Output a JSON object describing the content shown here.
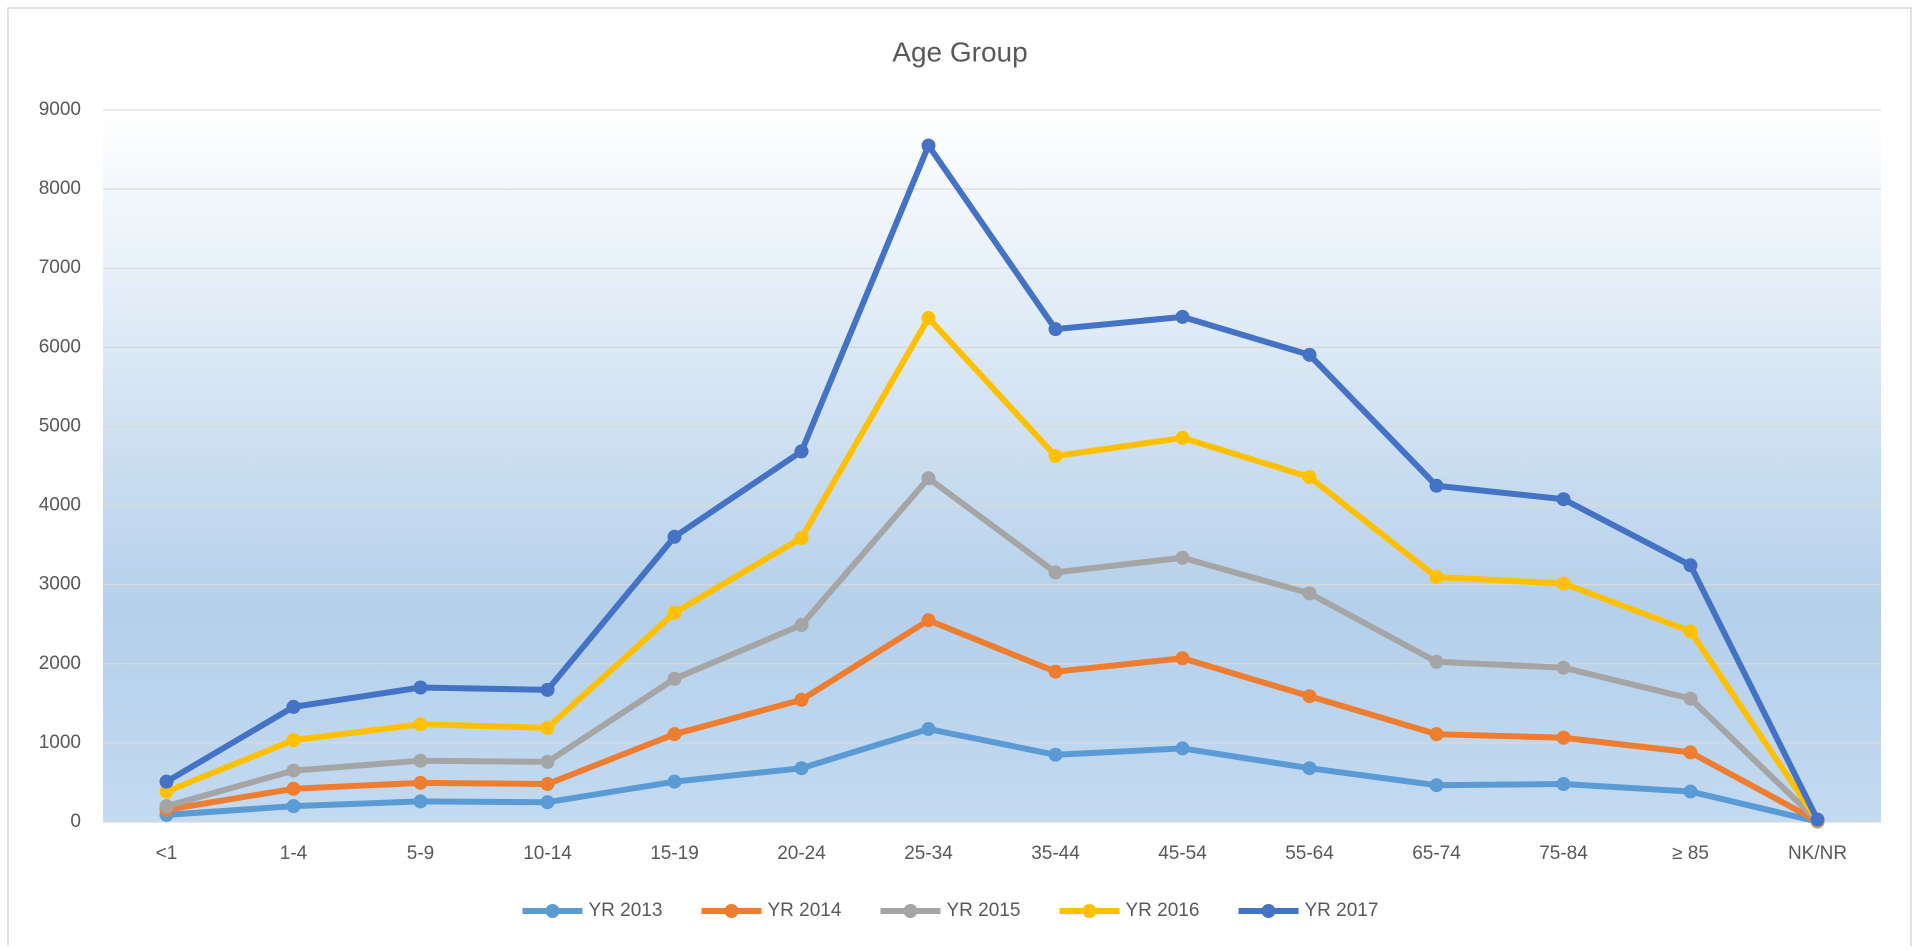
{
  "chart_data": {
    "type": "line",
    "title": "Age Group",
    "categories": [
      "<1",
      "1-4",
      "5-9",
      "10-14",
      "15-19",
      "20-24",
      "25-34",
      "35-44",
      "45-54",
      "55-64",
      "65-74",
      "75-84",
      "≥ 85",
      "NK/NR"
    ],
    "series": [
      {
        "name": "YR 2013",
        "color": "#5b9bd5",
        "values": [
          90,
          200,
          260,
          250,
          510,
          680,
          1175,
          850,
          930,
          680,
          465,
          480,
          385,
          5
        ]
      },
      {
        "name": "YR 2014",
        "color": "#ed7d31",
        "values": [
          155,
          420,
          495,
          480,
          1110,
          1545,
          2550,
          1900,
          2070,
          1590,
          1110,
          1065,
          880,
          10
        ]
      },
      {
        "name": "YR 2015",
        "color": "#a5a5a5",
        "values": [
          200,
          650,
          775,
          760,
          1810,
          2490,
          4345,
          3155,
          3340,
          2890,
          2025,
          1950,
          1560,
          15
        ]
      },
      {
        "name": "YR 2016",
        "color": "#ffc000",
        "values": [
          385,
          1035,
          1235,
          1190,
          2645,
          3590,
          6370,
          4625,
          4855,
          4360,
          3095,
          3015,
          2410,
          20
        ]
      },
      {
        "name": "YR 2017",
        "color": "#4472c4",
        "values": [
          510,
          1455,
          1700,
          1670,
          3605,
          4685,
          8550,
          6230,
          6385,
          5905,
          4250,
          4080,
          3245,
          30
        ]
      }
    ],
    "ylim": [
      0,
      9000
    ],
    "yticks": [
      0,
      1000,
      2000,
      3000,
      4000,
      5000,
      6000,
      7000,
      8000,
      9000
    ],
    "grid": true,
    "legend": "bottom"
  }
}
